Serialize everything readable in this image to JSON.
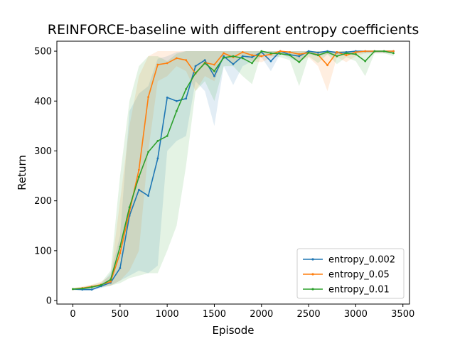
{
  "chart_data": {
    "type": "line",
    "title": "REINFORCE-baseline with different entropy coefficients",
    "xlabel": "Episode",
    "ylabel": "Return",
    "xlim": [
      -170,
      3570
    ],
    "ylim": [
      -7,
      520
    ],
    "xticks": [
      0,
      500,
      1000,
      1500,
      2000,
      2500,
      3000,
      3500
    ],
    "yticks": [
      0,
      100,
      200,
      300,
      400,
      500
    ],
    "legend_position": "lower right",
    "grid": false,
    "series": [
      {
        "name": "entropy_0.002",
        "color": "#1f77b4",
        "x": [
          0,
          100,
          200,
          300,
          400,
          500,
          600,
          700,
          800,
          900,
          1000,
          1100,
          1200,
          1300,
          1400,
          1500,
          1600,
          1700,
          1800,
          1900,
          2000,
          2100,
          2200,
          2300,
          2400,
          2500,
          2600,
          2700,
          2800,
          2900,
          3000,
          3100,
          3200,
          3300,
          3400
        ],
        "y": [
          23,
          22,
          22,
          29,
          36,
          65,
          170,
          222,
          210,
          285,
          407,
          400,
          405,
          470,
          482,
          450,
          490,
          474,
          490,
          488,
          498,
          480,
          500,
          493,
          490,
          500,
          497,
          500,
          497,
          498,
          500,
          500,
          500,
          500,
          500
        ],
        "upper": [
          25,
          24,
          25,
          33,
          55,
          130,
          380,
          415,
          430,
          485,
          490,
          498,
          500,
          500,
          500,
          500,
          500,
          500,
          500,
          500,
          500,
          500,
          500,
          500,
          500,
          500,
          500,
          500,
          500,
          500,
          500,
          500,
          500,
          500,
          500
        ],
        "lower": [
          21,
          20,
          20,
          25,
          30,
          40,
          50,
          60,
          55,
          70,
          300,
          320,
          330,
          440,
          420,
          350,
          470,
          432,
          470,
          480,
          488,
          460,
          495,
          486,
          478,
          494,
          490,
          494,
          490,
          494,
          496,
          496,
          496,
          496,
          496
        ]
      },
      {
        "name": "entropy_0.05",
        "color": "#ff7f0e",
        "x": [
          0,
          100,
          200,
          300,
          400,
          500,
          600,
          700,
          800,
          900,
          1000,
          1100,
          1200,
          1300,
          1400,
          1500,
          1600,
          1700,
          1800,
          1900,
          2000,
          2100,
          2200,
          2300,
          2400,
          2500,
          2600,
          2700,
          2800,
          2900,
          3000,
          3100,
          3200,
          3300,
          3400
        ],
        "y": [
          23,
          25,
          28,
          32,
          38,
          95,
          178,
          262,
          408,
          473,
          476,
          486,
          482,
          455,
          477,
          473,
          496,
          488,
          498,
          492,
          490,
          494,
          500,
          498,
          494,
          497,
          493,
          472,
          498,
          492,
          498,
          500,
          500,
          500,
          500
        ],
        "upper": [
          25,
          28,
          32,
          38,
          50,
          200,
          350,
          450,
          490,
          500,
          500,
          500,
          500,
          500,
          500,
          500,
          500,
          500,
          500,
          500,
          500,
          500,
          500,
          500,
          500,
          500,
          500,
          500,
          500,
          500,
          500,
          500,
          500,
          500,
          500
        ],
        "lower": [
          21,
          22,
          24,
          27,
          30,
          40,
          60,
          100,
          300,
          440,
          450,
          470,
          460,
          420,
          450,
          440,
          488,
          472,
          490,
          480,
          478,
          486,
          494,
          490,
          480,
          488,
          470,
          420,
          488,
          478,
          490,
          496,
          496,
          496,
          496
        ]
      },
      {
        "name": "entropy_0.01",
        "color": "#2ca02c",
        "x": [
          0,
          100,
          200,
          300,
          400,
          500,
          600,
          700,
          800,
          900,
          1000,
          1100,
          1200,
          1300,
          1400,
          1500,
          1600,
          1700,
          1800,
          1900,
          2000,
          2100,
          2200,
          2300,
          2400,
          2500,
          2600,
          2700,
          2800,
          2900,
          3000,
          3100,
          3200,
          3300,
          3400
        ],
        "y": [
          23,
          24,
          27,
          31,
          42,
          108,
          187,
          248,
          298,
          320,
          330,
          380,
          424,
          456,
          476,
          460,
          487,
          490,
          486,
          476,
          500,
          496,
          495,
          492,
          478,
          497,
          492,
          498,
          490,
          496,
          494,
          480,
          500,
          500,
          496
        ],
        "upper": [
          25,
          27,
          31,
          36,
          60,
          250,
          400,
          470,
          490,
          490,
          480,
          495,
          500,
          500,
          500,
          500,
          500,
          500,
          500,
          500,
          500,
          500,
          500,
          500,
          500,
          500,
          500,
          500,
          500,
          500,
          500,
          500,
          500,
          500,
          500
        ],
        "lower": [
          21,
          21,
          24,
          27,
          30,
          35,
          45,
          50,
          55,
          55,
          100,
          150,
          270,
          420,
          440,
          400,
          470,
          470,
          450,
          434,
          496,
          490,
          488,
          482,
          430,
          490,
          476,
          494,
          474,
          488,
          480,
          450,
          496,
          496,
          490
        ]
      }
    ]
  }
}
